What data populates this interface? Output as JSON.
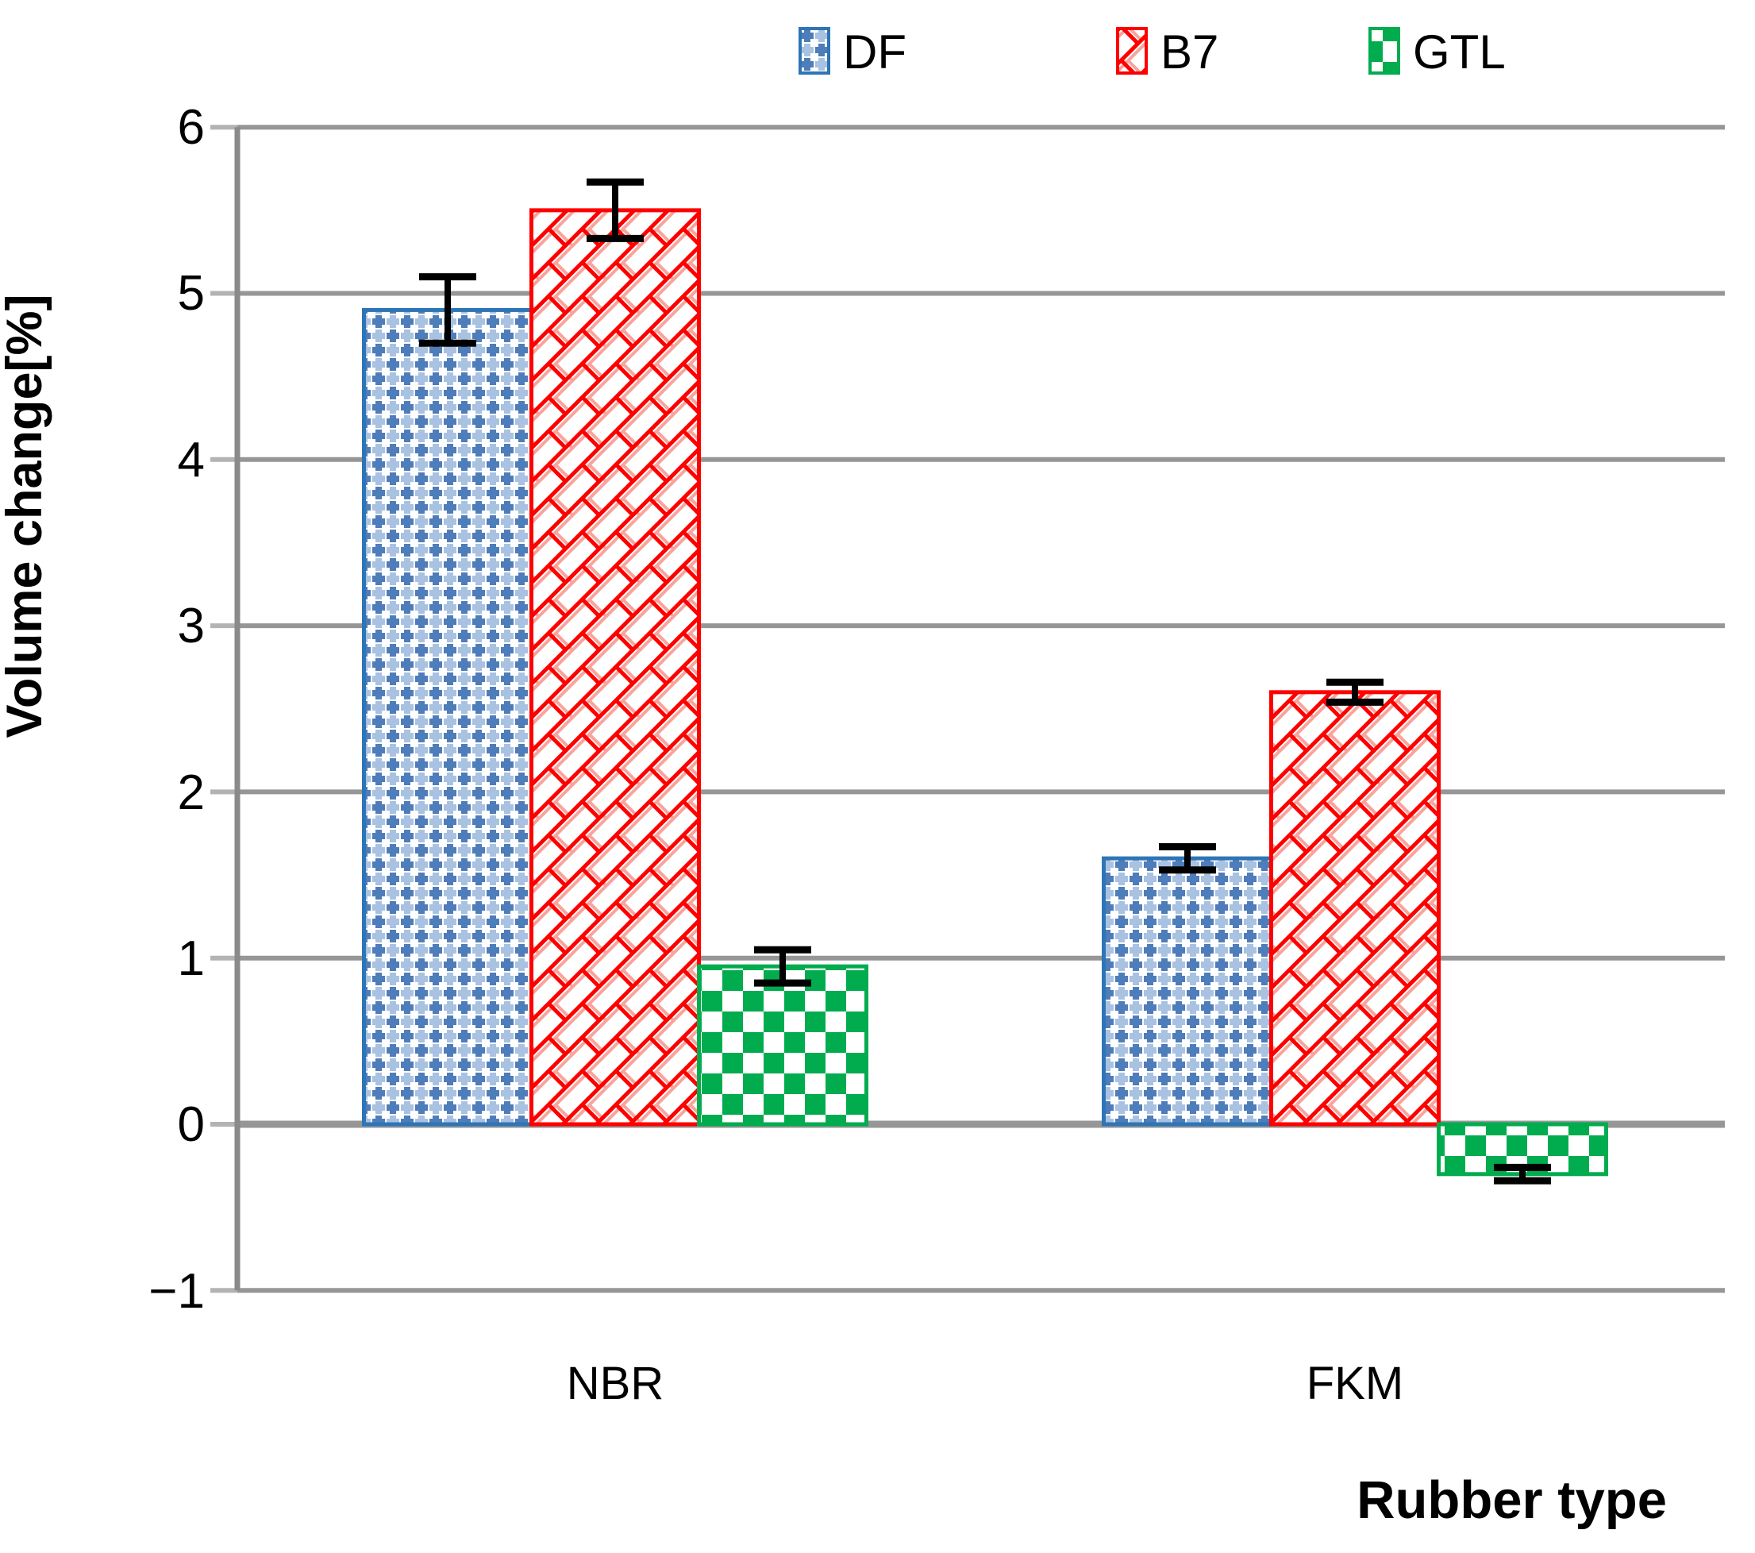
{
  "axes": {
    "y_title": "Volume change[%]",
    "x_title": "Rubber type",
    "y_ticks": [
      "6",
      "5",
      "4",
      "3",
      "2",
      "1",
      "0",
      "−1"
    ],
    "categories": [
      "NBR",
      "FKM"
    ]
  },
  "legend": {
    "items": [
      {
        "label": "DF",
        "color": "#2E75B6"
      },
      {
        "label": "B7",
        "color": "#FF0000"
      },
      {
        "label": "GTL",
        "color": "#00AC4E"
      }
    ]
  },
  "chart_data": {
    "type": "bar",
    "title": "",
    "xlabel": "Rubber type",
    "ylabel": "Volume change[%]",
    "categories": [
      "NBR",
      "FKM"
    ],
    "series": [
      {
        "name": "DF",
        "values": [
          4.9,
          1.6
        ],
        "errors": [
          0.2,
          0.07
        ],
        "border_color": "#2E75B6",
        "pattern": "blue-plus-weave"
      },
      {
        "name": "B7",
        "values": [
          5.5,
          2.6
        ],
        "errors": [
          0.17,
          0.06
        ],
        "border_color": "#FF0000",
        "pattern": "red-diagonal-brick"
      },
      {
        "name": "GTL",
        "values": [
          0.95,
          -0.3
        ],
        "errors": [
          0.1,
          0.04
        ],
        "border_color": "#00AC4E",
        "pattern": "green-checkerboard"
      }
    ],
    "ylim": [
      -1,
      6
    ],
    "yticks": [
      6,
      5,
      4,
      3,
      2,
      1,
      0,
      -1
    ],
    "grid": true,
    "gridline_color": "#969696",
    "axis_color": "#8A8A8A",
    "error_bar_color": "#000000",
    "legend_position": "top",
    "error_bars": true
  }
}
